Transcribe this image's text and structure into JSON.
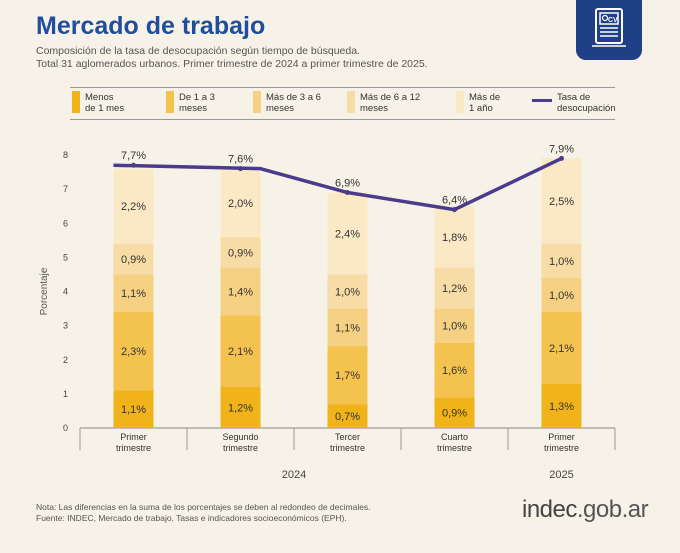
{
  "header": {
    "title": "Mercado de trabajo",
    "subtitle_line1": "Composición de la tasa de desocupación según tiempo de búsqueda.",
    "subtitle_line2": "Total 31 aglomerados urbanos. Primer trimestre de 2024 a primer trimestre de 2025.",
    "badge_text": "CV",
    "badge_icon": "cv-document-icon"
  },
  "colors": {
    "title": "#1f4e9c",
    "s1": "#f0b31a",
    "s2": "#f4c24f",
    "s3": "#f6d183",
    "s4": "#f8dca5",
    "s5": "#fbe9c6",
    "line": "#4a3b8c",
    "badge": "#1f3f86"
  },
  "chart_data": {
    "type": "bar",
    "stacked": true,
    "ylabel": "Porcentaje",
    "ylim": [
      0,
      8
    ],
    "yticks": [
      0,
      1,
      2,
      3,
      4,
      5,
      6,
      7,
      8
    ],
    "categories": [
      [
        "Primer",
        "trimestre"
      ],
      [
        "Segundo",
        "trimestre"
      ],
      [
        "Tercer",
        "trimestre"
      ],
      [
        "Cuarto",
        "trimestre"
      ],
      [
        "Primer",
        "trimestre"
      ]
    ],
    "years": [
      {
        "label": "2024",
        "span": [
          0,
          3
        ]
      },
      {
        "label": "2025",
        "span": [
          4,
          4
        ]
      }
    ],
    "series": [
      {
        "name": [
          "Menos",
          "de 1 mes"
        ],
        "color_key": "s1",
        "values": [
          1.1,
          1.2,
          0.7,
          0.9,
          1.3
        ],
        "labels": [
          "1,1%",
          "1,2%",
          "0,7%",
          "0,9%",
          "1,3%"
        ]
      },
      {
        "name": [
          "De 1 a 3",
          "meses"
        ],
        "color_key": "s2",
        "values": [
          2.3,
          2.1,
          1.7,
          1.6,
          2.1
        ],
        "labels": [
          "2,3%",
          "2,1%",
          "1,7%",
          "1,6%",
          "2,1%"
        ]
      },
      {
        "name": [
          "Más de 3 a 6",
          "meses"
        ],
        "color_key": "s3",
        "values": [
          1.1,
          1.4,
          1.1,
          1.0,
          1.0
        ],
        "labels": [
          "1,1%",
          "1,4%",
          "1,1%",
          "1,0%",
          "1,0%"
        ]
      },
      {
        "name": [
          "Más de 6 a 12",
          "meses"
        ],
        "color_key": "s4",
        "values": [
          0.9,
          0.9,
          1.0,
          1.2,
          1.0
        ],
        "labels": [
          "0,9%",
          "0,9%",
          "1,0%",
          "1,2%",
          "1,0%"
        ]
      },
      {
        "name": [
          "Más de",
          "1 año"
        ],
        "color_key": "s5",
        "values": [
          2.2,
          2.0,
          2.4,
          1.8,
          2.5
        ],
        "labels": [
          "2,2%",
          "2,0%",
          "2,4%",
          "1,8%",
          "2,5%"
        ]
      }
    ],
    "line": {
      "name": [
        "Tasa de",
        "desocupación"
      ],
      "values": [
        7.7,
        7.6,
        6.9,
        6.4,
        7.9
      ],
      "labels": [
        "7,7%",
        "7,6%",
        "6,9%",
        "6,4%",
        "7,9%"
      ]
    }
  },
  "footer": {
    "note": "Nota: Las diferencias en la suma de los porcentajes se deben al redondeo de decimales.",
    "source": "Fuente: INDEC, Mercado de trabajo. Tasas e indicadores socioeconómicos (EPH).",
    "logo_main": "indec",
    "logo_domain": ".gob.ar"
  }
}
